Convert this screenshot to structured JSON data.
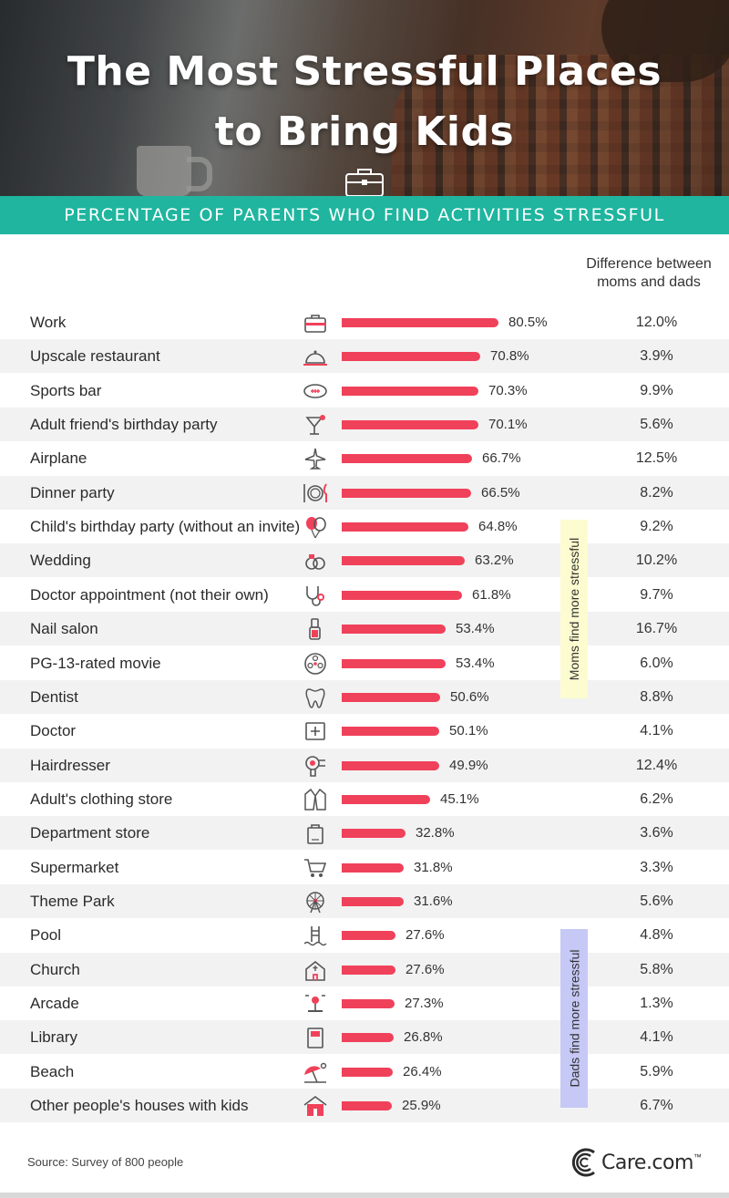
{
  "header": {
    "title_line1": "The Most Stressful Places",
    "title_line2": "to Bring Kids",
    "subtitle": "PERCENTAGE OF PARENTS WHO FIND ACTIVITIES STRESSFUL"
  },
  "diff_header": {
    "line1": "Difference between",
    "line2": "moms and dads"
  },
  "side_labels": {
    "moms": "Moms find more stressful",
    "dads": "Dads find more stressful"
  },
  "colors": {
    "bar": "#f0415a",
    "banner": "#1fb59f",
    "moms_cell": "#fdfcd0",
    "dads_cell": "#c6c8f6",
    "icon": "#555555",
    "icon_accent": "#f0415a"
  },
  "chart_data": {
    "type": "bar",
    "orientation": "horizontal",
    "unit": "%",
    "xlim": [
      0,
      100
    ],
    "rows": [
      {
        "label": "Work",
        "icon": "briefcase-icon",
        "value": 80.5,
        "value_label": "80.5%",
        "diff": "12.0%",
        "group": "moms"
      },
      {
        "label": "Upscale restaurant",
        "icon": "cloche-icon",
        "value": 70.8,
        "value_label": "70.8%",
        "diff": "3.9%",
        "group": "moms"
      },
      {
        "label": "Sports bar",
        "icon": "football-icon",
        "value": 70.3,
        "value_label": "70.3%",
        "diff": "9.9%",
        "group": "moms"
      },
      {
        "label": "Adult friend's birthday party",
        "icon": "cocktail-icon",
        "value": 70.1,
        "value_label": "70.1%",
        "diff": "5.6%",
        "group": "moms"
      },
      {
        "label": "Airplane",
        "icon": "airplane-icon",
        "value": 66.7,
        "value_label": "66.7%",
        "diff": "12.5%",
        "group": "moms"
      },
      {
        "label": "Dinner party",
        "icon": "plate-icon",
        "value": 66.5,
        "value_label": "66.5%",
        "diff": "8.2%",
        "group": "moms"
      },
      {
        "label": "Child's birthday party (without an invite)",
        "icon": "balloons-icon",
        "value": 64.8,
        "value_label": "64.8%",
        "diff": "9.2%",
        "group": "moms"
      },
      {
        "label": "Wedding",
        "icon": "rings-icon",
        "value": 63.2,
        "value_label": "63.2%",
        "diff": "10.2%",
        "group": "moms"
      },
      {
        "label": "Doctor appointment (not their own)",
        "icon": "stethoscope-icon",
        "value": 61.8,
        "value_label": "61.8%",
        "diff": "9.7%",
        "group": "moms"
      },
      {
        "label": "Nail salon",
        "icon": "nail-polish-icon",
        "value": 53.4,
        "value_label": "53.4%",
        "diff": "16.7%",
        "group": "moms"
      },
      {
        "label": "PG-13-rated movie",
        "icon": "film-reel-icon",
        "value": 53.4,
        "value_label": "53.4%",
        "diff": "6.0%",
        "group": "moms"
      },
      {
        "label": "Dentist",
        "icon": "tooth-icon",
        "value": 50.6,
        "value_label": "50.6%",
        "diff": "8.8%",
        "group": "moms"
      },
      {
        "label": "Doctor",
        "icon": "medical-cross-icon",
        "value": 50.1,
        "value_label": "50.1%",
        "diff": "4.1%",
        "group": "moms"
      },
      {
        "label": "Hairdresser",
        "icon": "hair-dryer-icon",
        "value": 49.9,
        "value_label": "49.9%",
        "diff": "12.4%",
        "group": "moms"
      },
      {
        "label": "Adult's clothing store",
        "icon": "jacket-icon",
        "value": 45.1,
        "value_label": "45.1%",
        "diff": "6.2%",
        "group": "moms"
      },
      {
        "label": "Department store",
        "icon": "shopping-bag-icon",
        "value": 32.8,
        "value_label": "32.8%",
        "diff": "3.6%",
        "group": "moms"
      },
      {
        "label": "Supermarket",
        "icon": "cart-icon",
        "value": 31.8,
        "value_label": "31.8%",
        "diff": "3.3%",
        "group": "moms"
      },
      {
        "label": "Theme Park",
        "icon": "ferris-wheel-icon",
        "value": 31.6,
        "value_label": "31.6%",
        "diff": "5.6%",
        "group": "moms"
      },
      {
        "label": "Pool",
        "icon": "pool-ladder-icon",
        "value": 27.6,
        "value_label": "27.6%",
        "diff": "4.8%",
        "group": "dads"
      },
      {
        "label": "Church",
        "icon": "church-icon",
        "value": 27.6,
        "value_label": "27.6%",
        "diff": "5.8%",
        "group": "dads"
      },
      {
        "label": "Arcade",
        "icon": "joystick-icon",
        "value": 27.3,
        "value_label": "27.3%",
        "diff": "1.3%",
        "group": "dads"
      },
      {
        "label": "Library",
        "icon": "book-icon",
        "value": 26.8,
        "value_label": "26.8%",
        "diff": "4.1%",
        "group": "dads"
      },
      {
        "label": "Beach",
        "icon": "beach-umbrella-icon",
        "value": 26.4,
        "value_label": "26.4%",
        "diff": "5.9%",
        "group": "dads"
      },
      {
        "label": "Other people's houses with kids",
        "icon": "house-icon",
        "value": 25.9,
        "value_label": "25.9%",
        "diff": "6.7%",
        "group": "dads"
      }
    ]
  },
  "footer": {
    "source": "Source: Survey of 800 people",
    "logo": "Care.com",
    "logo_mark": "™"
  }
}
